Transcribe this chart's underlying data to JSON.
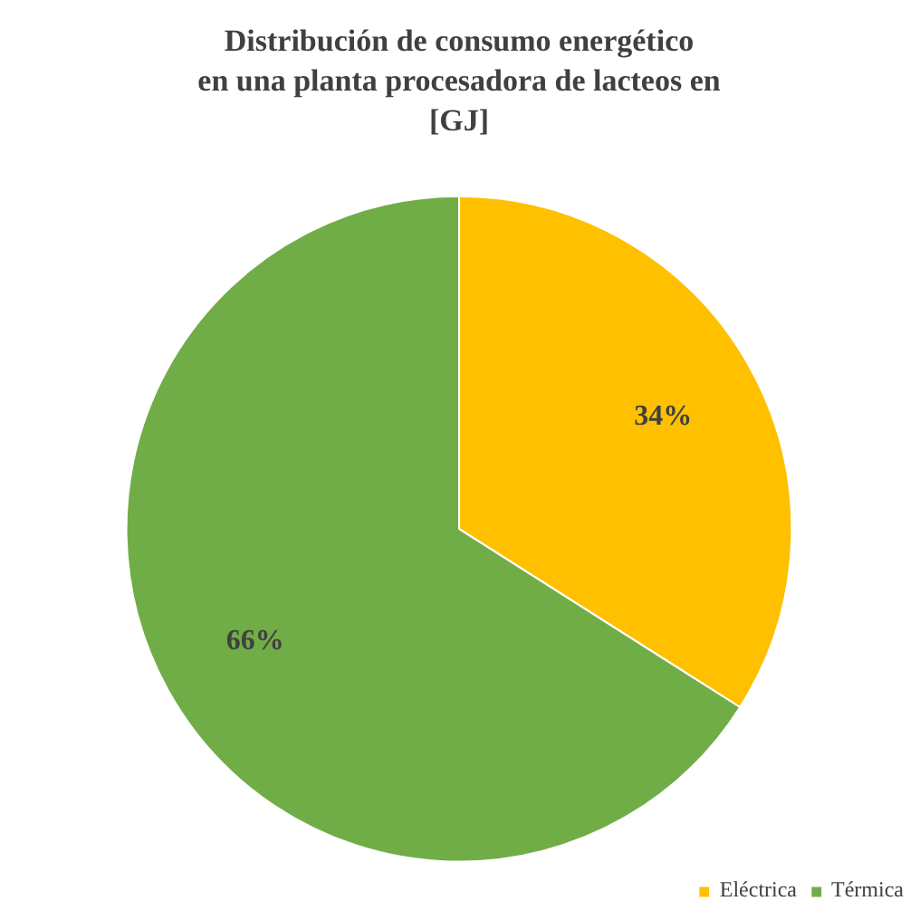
{
  "chart_data": {
    "type": "pie",
    "title": "Distribución de consumo energético\nen una planta procesadora de lacteos en\n[GJ]",
    "categories": [
      "Eléctrica",
      "Térmica"
    ],
    "values": [
      34,
      66
    ],
    "colors": [
      "#ffc000",
      "#70ad47"
    ],
    "value_labels": [
      "34%",
      "66%"
    ],
    "legend": "bottom right"
  }
}
